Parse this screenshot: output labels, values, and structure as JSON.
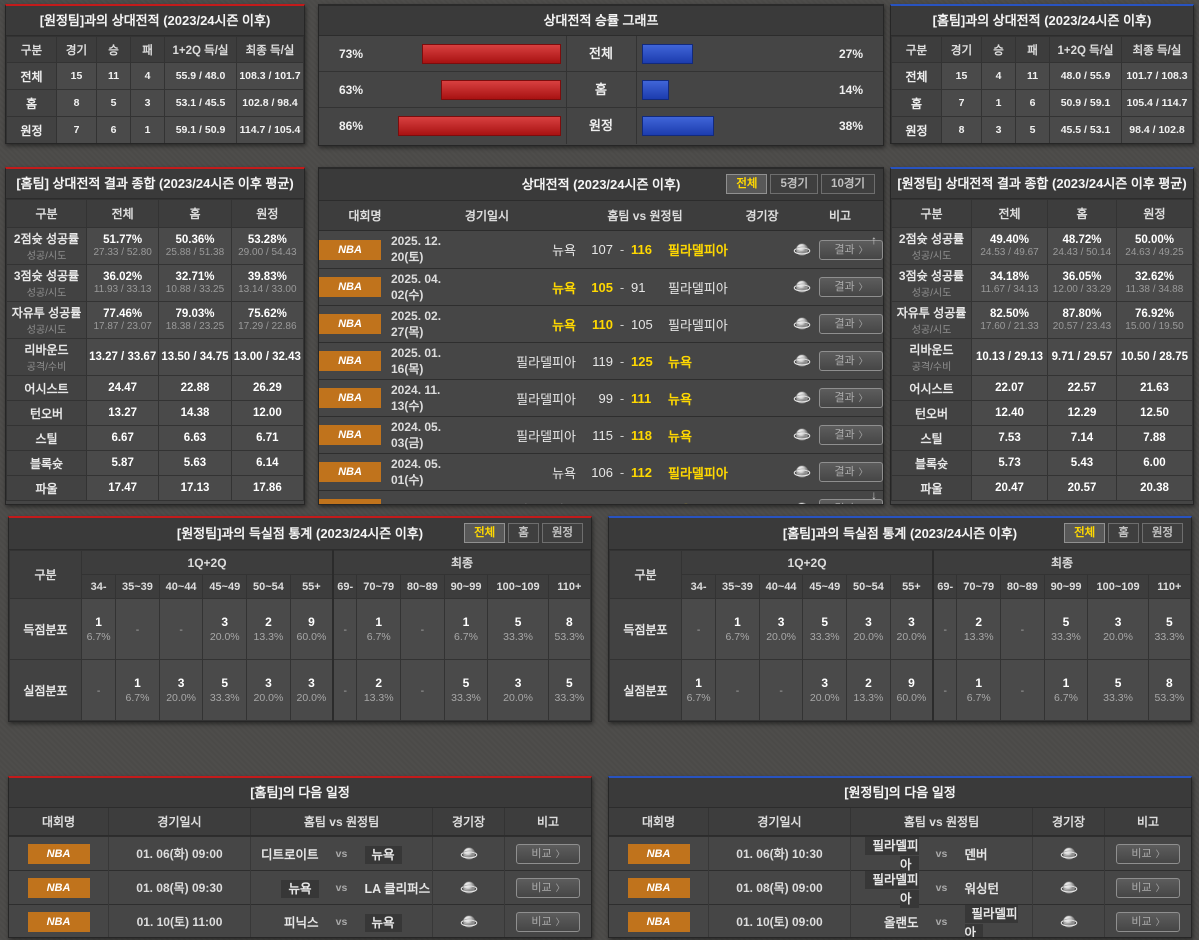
{
  "colors": {
    "red": "#c31b1b",
    "blue": "#2853c0",
    "yellow": "#ffd800",
    "orange": "#c0731c"
  },
  "misc": {
    "chevron": "〉",
    "empty": "-",
    "scroll_up": "↑",
    "scroll_down": "↓"
  },
  "h2h_away": {
    "title": "[원정팀]과의 상대전적 (2023/24시즌 이후)",
    "headers": [
      "구분",
      "경기",
      "승",
      "패",
      "1+2Q 득/실",
      "최종 득/실"
    ],
    "rows": [
      [
        "전체",
        "15",
        "11",
        "4",
        "55.9 / 48.0",
        "108.3 / 101.7"
      ],
      [
        "홈",
        "8",
        "5",
        "3",
        "53.1 / 45.5",
        "102.8 / 98.4"
      ],
      [
        "원정",
        "7",
        "6",
        "1",
        "59.1 / 50.9",
        "114.7 / 105.4"
      ]
    ]
  },
  "winrate_graph": {
    "title": "상대전적 승률 그래프",
    "rows": [
      {
        "label": "전체",
        "left_pct": "73%",
        "left_val": 73,
        "right_pct": "27%",
        "right_val": 27
      },
      {
        "label": "홈",
        "left_pct": "63%",
        "left_val": 63,
        "right_pct": "14%",
        "right_val": 14
      },
      {
        "label": "원정",
        "left_pct": "86%",
        "left_val": 86,
        "right_pct": "38%",
        "right_val": 38
      }
    ]
  },
  "h2h_home": {
    "title": "[홈팀]과의 상대전적 (2023/24시즌 이후)",
    "headers": [
      "구분",
      "경기",
      "승",
      "패",
      "1+2Q 득/실",
      "최종 득/실"
    ],
    "rows": [
      [
        "전체",
        "15",
        "4",
        "11",
        "48.0 / 55.9",
        "101.7 / 108.3"
      ],
      [
        "홈",
        "7",
        "1",
        "6",
        "50.9 / 59.1",
        "105.4 / 114.7"
      ],
      [
        "원정",
        "8",
        "3",
        "5",
        "45.5 / 53.1",
        "98.4 / 102.8"
      ]
    ]
  },
  "summary_home": {
    "title": "[홈팀] 상대전적 결과 종합 (2023/24시즌 이후 평균)",
    "headers": [
      "구분",
      "전체",
      "홈",
      "원정"
    ],
    "rows": [
      {
        "label": "2점슛 성공률",
        "sub": "성공/시도",
        "main": [
          "51.77%",
          "50.36%",
          "53.28%"
        ],
        "subv": [
          "27.33 / 52.80",
          "25.88 / 51.38",
          "29.00 / 54.43"
        ]
      },
      {
        "label": "3점슛 성공률",
        "sub": "성공/시도",
        "main": [
          "36.02%",
          "32.71%",
          "39.83%"
        ],
        "subv": [
          "11.93 / 33.13",
          "10.88 / 33.25",
          "13.14 / 33.00"
        ]
      },
      {
        "label": "자유투 성공률",
        "sub": "성공/시도",
        "main": [
          "77.46%",
          "79.03%",
          "75.62%"
        ],
        "subv": [
          "17.87 / 23.07",
          "18.38 / 23.25",
          "17.29 / 22.86"
        ]
      },
      {
        "label": "리바운드",
        "sub": "공격/수비",
        "main": [
          "13.27 / 33.67",
          "13.50 / 34.75",
          "13.00 / 32.43"
        ]
      },
      {
        "label": "어시스트",
        "main": [
          "24.47",
          "22.88",
          "26.29"
        ]
      },
      {
        "label": "턴오버",
        "main": [
          "13.27",
          "14.38",
          "12.00"
        ]
      },
      {
        "label": "스틸",
        "main": [
          "6.67",
          "6.63",
          "6.71"
        ]
      },
      {
        "label": "블록슛",
        "main": [
          "5.87",
          "5.63",
          "6.14"
        ]
      },
      {
        "label": "파울",
        "main": [
          "17.47",
          "17.13",
          "17.86"
        ]
      }
    ]
  },
  "summary_away": {
    "title": "[원정팀] 상대전적 결과 종합 (2023/24시즌 이후 평균)",
    "headers": [
      "구분",
      "전체",
      "홈",
      "원정"
    ],
    "rows": [
      {
        "label": "2점슛 성공률",
        "sub": "성공/시도",
        "main": [
          "49.40%",
          "48.72%",
          "50.00%"
        ],
        "subv": [
          "24.53 / 49.67",
          "24.43 / 50.14",
          "24.63 / 49.25"
        ]
      },
      {
        "label": "3점슛 성공률",
        "sub": "성공/시도",
        "main": [
          "34.18%",
          "36.05%",
          "32.62%"
        ],
        "subv": [
          "11.67 / 34.13",
          "12.00 / 33.29",
          "11.38 / 34.88"
        ]
      },
      {
        "label": "자유투 성공률",
        "sub": "성공/시도",
        "main": [
          "82.50%",
          "87.80%",
          "76.92%"
        ],
        "subv": [
          "17.60 / 21.33",
          "20.57 / 23.43",
          "15.00 / 19.50"
        ]
      },
      {
        "label": "리바운드",
        "sub": "공격/수비",
        "main": [
          "10.13 / 29.13",
          "9.71 / 29.57",
          "10.50 / 28.75"
        ]
      },
      {
        "label": "어시스트",
        "main": [
          "22.07",
          "22.57",
          "21.63"
        ]
      },
      {
        "label": "턴오버",
        "main": [
          "12.40",
          "12.29",
          "12.50"
        ]
      },
      {
        "label": "스틸",
        "main": [
          "7.53",
          "7.14",
          "7.88"
        ]
      },
      {
        "label": "블록슛",
        "main": [
          "5.73",
          "5.43",
          "6.00"
        ]
      },
      {
        "label": "파울",
        "main": [
          "20.47",
          "20.57",
          "20.38"
        ]
      }
    ]
  },
  "matches": {
    "title": "상대전적 (2023/24시즌 이후)",
    "tabs": [
      "전체",
      "5경기",
      "10경기"
    ],
    "active_tab": 0,
    "headers": [
      "대회명",
      "경기일시",
      "홈팀 vs 원정팀",
      "경기장",
      "비고"
    ],
    "button_label": "결과",
    "rows": [
      {
        "league": "NBA",
        "date": "2025. 12. 20(토)",
        "home": "뉴욕",
        "hs": "107",
        "as": "116",
        "away": "필라델피아",
        "winner": "away"
      },
      {
        "league": "NBA",
        "date": "2025. 04. 02(수)",
        "home": "뉴욕",
        "hs": "105",
        "as": "91",
        "away": "필라델피아",
        "winner": "home"
      },
      {
        "league": "NBA",
        "date": "2025. 02. 27(목)",
        "home": "뉴욕",
        "hs": "110",
        "as": "105",
        "away": "필라델피아",
        "winner": "home"
      },
      {
        "league": "NBA",
        "date": "2025. 01. 16(목)",
        "home": "필라델피아",
        "hs": "119",
        "as": "125",
        "away": "뉴욕",
        "winner": "away"
      },
      {
        "league": "NBA",
        "date": "2024. 11. 13(수)",
        "home": "필라델피아",
        "hs": "99",
        "as": "111",
        "away": "뉴욕",
        "winner": "away"
      },
      {
        "league": "NBA",
        "date": "2024. 05. 03(금)",
        "home": "필라델피아",
        "hs": "115",
        "as": "118",
        "away": "뉴욕",
        "winner": "away"
      },
      {
        "league": "NBA",
        "date": "2024. 05. 01(수)",
        "home": "뉴욕",
        "hs": "106",
        "as": "112",
        "away": "필라델피아",
        "winner": "away"
      },
      {
        "league": "NBA",
        "date": "",
        "home": "필라델피아",
        "hs": "",
        "as": "",
        "away": "뉴욕",
        "winner": "away"
      }
    ]
  },
  "scoring_away": {
    "title": "[원정팀]과의 득실점 통계 (2023/24시즌 이후)",
    "tabs": [
      "전체",
      "홈",
      "원정"
    ],
    "active_tab": 0,
    "corner_label": "구분",
    "groups": [
      "1Q+2Q",
      "최종"
    ],
    "ranges": [
      "34-",
      "35~39",
      "40~44",
      "45~49",
      "50~54",
      "55+",
      "69-",
      "70~79",
      "80~89",
      "90~99",
      "100~109",
      "110+"
    ],
    "rows": [
      {
        "label": "득점분포",
        "cells": [
          {
            "n": "1",
            "p": "6.7%"
          },
          null,
          null,
          {
            "n": "3",
            "p": "20.0%"
          },
          {
            "n": "2",
            "p": "13.3%"
          },
          {
            "n": "9",
            "p": "60.0%"
          },
          null,
          {
            "n": "1",
            "p": "6.7%"
          },
          null,
          {
            "n": "1",
            "p": "6.7%"
          },
          {
            "n": "5",
            "p": "33.3%"
          },
          {
            "n": "8",
            "p": "53.3%"
          }
        ]
      },
      {
        "label": "실점분포",
        "cells": [
          null,
          {
            "n": "1",
            "p": "6.7%"
          },
          {
            "n": "3",
            "p": "20.0%"
          },
          {
            "n": "5",
            "p": "33.3%"
          },
          {
            "n": "3",
            "p": "20.0%"
          },
          {
            "n": "3",
            "p": "20.0%"
          },
          null,
          {
            "n": "2",
            "p": "13.3%"
          },
          null,
          {
            "n": "5",
            "p": "33.3%"
          },
          {
            "n": "3",
            "p": "20.0%"
          },
          {
            "n": "5",
            "p": "33.3%"
          }
        ]
      }
    ]
  },
  "scoring_home": {
    "title": "[홈팀]과의 득실점 통계 (2023/24시즌 이후)",
    "tabs": [
      "전체",
      "홈",
      "원정"
    ],
    "active_tab": 0,
    "corner_label": "구분",
    "groups": [
      "1Q+2Q",
      "최종"
    ],
    "ranges": [
      "34-",
      "35~39",
      "40~44",
      "45~49",
      "50~54",
      "55+",
      "69-",
      "70~79",
      "80~89",
      "90~99",
      "100~109",
      "110+"
    ],
    "rows": [
      {
        "label": "득점분포",
        "cells": [
          null,
          {
            "n": "1",
            "p": "6.7%"
          },
          {
            "n": "3",
            "p": "20.0%"
          },
          {
            "n": "5",
            "p": "33.3%"
          },
          {
            "n": "3",
            "p": "20.0%"
          },
          {
            "n": "3",
            "p": "20.0%"
          },
          null,
          {
            "n": "2",
            "p": "13.3%"
          },
          null,
          {
            "n": "5",
            "p": "33.3%"
          },
          {
            "n": "3",
            "p": "20.0%"
          },
          {
            "n": "5",
            "p": "33.3%"
          }
        ]
      },
      {
        "label": "실점분포",
        "cells": [
          {
            "n": "1",
            "p": "6.7%"
          },
          null,
          null,
          {
            "n": "3",
            "p": "20.0%"
          },
          {
            "n": "2",
            "p": "13.3%"
          },
          {
            "n": "9",
            "p": "60.0%"
          },
          null,
          {
            "n": "1",
            "p": "6.7%"
          },
          null,
          {
            "n": "1",
            "p": "6.7%"
          },
          {
            "n": "5",
            "p": "33.3%"
          },
          {
            "n": "8",
            "p": "53.3%"
          }
        ]
      }
    ]
  },
  "schedule_home": {
    "title": "[홈팀]의 다음 일정",
    "headers": [
      "대회명",
      "경기일시",
      "홈팀 vs 원정팀",
      "경기장",
      "비고"
    ],
    "vs_label": "vs",
    "button_label": "비교",
    "rows": [
      {
        "league": "NBA",
        "date": "01. 06(화) 09:00",
        "home": "디트로이트",
        "away": "뉴욕",
        "highlight": "away"
      },
      {
        "league": "NBA",
        "date": "01. 08(목) 09:30",
        "home": "뉴욕",
        "away": "LA 클리퍼스",
        "highlight": "home"
      },
      {
        "league": "NBA",
        "date": "01. 10(토) 11:00",
        "home": "피닉스",
        "away": "뉴욕",
        "highlight": "away"
      }
    ]
  },
  "schedule_away": {
    "title": "[원정팀]의 다음 일정",
    "headers": [
      "대회명",
      "경기일시",
      "홈팀 vs 원정팀",
      "경기장",
      "비고"
    ],
    "vs_label": "vs",
    "button_label": "비교",
    "rows": [
      {
        "league": "NBA",
        "date": "01. 06(화) 10:30",
        "home": "필라델피아",
        "away": "덴버",
        "highlight": "home"
      },
      {
        "league": "NBA",
        "date": "01. 08(목) 09:00",
        "home": "필라델피아",
        "away": "워싱턴",
        "highlight": "home"
      },
      {
        "league": "NBA",
        "date": "01. 10(토) 09:00",
        "home": "올랜도",
        "away": "필라델피아",
        "highlight": "away"
      }
    ]
  }
}
